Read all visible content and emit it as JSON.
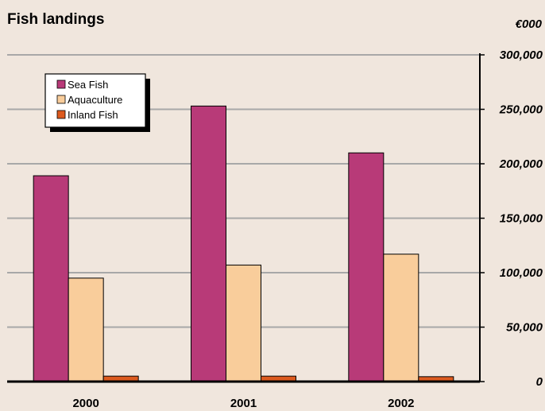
{
  "header": {
    "title": "Fish landings",
    "unit": "€000"
  },
  "colors": {
    "background": "#f0e6dd",
    "grid": "#a8a8a8"
  },
  "chart_data": {
    "type": "bar",
    "title": "Fish landings",
    "ylabel": "€000",
    "xlabel": "",
    "categories": [
      "2000",
      "2001",
      "2002"
    ],
    "series": [
      {
        "name": "Sea Fish",
        "color": "#b83a78",
        "values": [
          189000,
          253000,
          210000
        ]
      },
      {
        "name": "Aquaculture",
        "color": "#f9cd9b",
        "values": [
          95000,
          107000,
          117000
        ]
      },
      {
        "name": "Inland Fish",
        "color": "#dd5a1e",
        "values": [
          5000,
          5000,
          4500
        ]
      }
    ],
    "ylim": [
      0,
      300000
    ],
    "yticks": [
      0,
      50000,
      100000,
      150000,
      200000,
      250000,
      300000
    ],
    "ytick_labels": [
      "0",
      "50,000",
      "100,000",
      "150,000",
      "200,000",
      "250,000",
      "300,000"
    ],
    "grid": true,
    "legend_position": "top-left",
    "y_axis_side": "right"
  }
}
